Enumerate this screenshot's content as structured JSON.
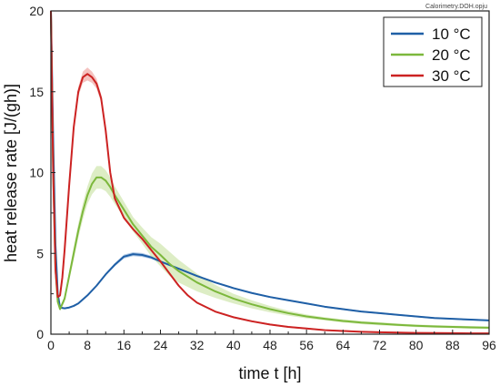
{
  "source_label": "Calorimetry.DOH.opju",
  "chart_data": {
    "type": "line",
    "xlabel": "time t [h]",
    "ylabel": "heat release rate [J/(gh)]",
    "xlim": [
      0,
      96
    ],
    "ylim": [
      0,
      20
    ],
    "x_ticks": [
      0,
      8,
      16,
      24,
      32,
      40,
      48,
      56,
      64,
      72,
      80,
      88,
      96
    ],
    "y_ticks": [
      0,
      5,
      10,
      15,
      20
    ],
    "grid": false,
    "legend_position": "top-right",
    "series": [
      {
        "name": "10 °C",
        "color": "#1f5fa6",
        "band_color": "#8fb3dc",
        "x": [
          0,
          0.5,
          1,
          1.5,
          2,
          3,
          4,
          5,
          6,
          8,
          10,
          12,
          14,
          16,
          18,
          20,
          22,
          24,
          28,
          32,
          36,
          40,
          44,
          48,
          52,
          56,
          60,
          64,
          68,
          72,
          76,
          80,
          84,
          88,
          92,
          96
        ],
        "y": [
          20,
          12,
          5.5,
          2.5,
          1.65,
          1.6,
          1.65,
          1.75,
          1.9,
          2.4,
          3.0,
          3.7,
          4.3,
          4.8,
          4.95,
          4.9,
          4.75,
          4.5,
          4.05,
          3.6,
          3.2,
          2.85,
          2.55,
          2.3,
          2.1,
          1.9,
          1.7,
          1.55,
          1.4,
          1.3,
          1.2,
          1.1,
          1.0,
          0.95,
          0.9,
          0.85
        ],
        "band": [
          0,
          0,
          0,
          0,
          0.05,
          0.05,
          0.05,
          0.05,
          0.05,
          0.05,
          0.05,
          0.07,
          0.1,
          0.12,
          0.12,
          0.12,
          0.1,
          0.08,
          0.05,
          0.05,
          0.05,
          0.05,
          0.05,
          0.05,
          0.05,
          0.05,
          0.05,
          0.05,
          0.05,
          0.05,
          0.05,
          0.05,
          0.05,
          0.05,
          0.05,
          0.05
        ]
      },
      {
        "name": "20 °C",
        "color": "#7cb83c",
        "band_color": "#cfe6ad",
        "x": [
          0,
          0.5,
          1,
          1.5,
          2,
          3,
          4,
          5,
          6,
          7,
          8,
          9,
          10,
          11,
          12,
          13,
          14,
          16,
          18,
          20,
          22,
          24,
          26,
          28,
          32,
          36,
          40,
          44,
          48,
          52,
          56,
          60,
          64,
          68,
          72,
          76,
          80,
          84,
          88,
          92,
          96
        ],
        "y": [
          20,
          10,
          4,
          2.0,
          1.55,
          2.2,
          3.6,
          5.0,
          6.4,
          7.6,
          8.6,
          9.3,
          9.7,
          9.7,
          9.5,
          9.1,
          8.6,
          7.7,
          6.8,
          6.1,
          5.4,
          4.9,
          4.35,
          3.9,
          3.2,
          2.65,
          2.2,
          1.85,
          1.55,
          1.3,
          1.1,
          0.95,
          0.82,
          0.72,
          0.65,
          0.58,
          0.52,
          0.48,
          0.45,
          0.42,
          0.4
        ],
        "band": [
          0,
          0,
          0,
          0,
          0.1,
          0.2,
          0.3,
          0.4,
          0.45,
          0.5,
          0.55,
          0.65,
          0.7,
          0.7,
          0.65,
          0.6,
          0.55,
          0.5,
          0.45,
          0.5,
          0.6,
          0.7,
          0.75,
          0.7,
          0.55,
          0.4,
          0.3,
          0.25,
          0.2,
          0.15,
          0.12,
          0.1,
          0.1,
          0.1,
          0.1,
          0.08,
          0.08,
          0.08,
          0.08,
          0.08,
          0.08
        ]
      },
      {
        "name": "30 °C",
        "color": "#cc2222",
        "band_color": "#f0a8a4",
        "x": [
          0,
          0.5,
          1,
          1.5,
          2,
          2.5,
          3,
          4,
          5,
          6,
          7,
          8,
          9,
          10,
          11,
          12,
          13,
          14,
          16,
          18,
          20,
          22,
          24,
          26,
          28,
          30,
          32,
          36,
          40,
          44,
          48,
          52,
          56,
          60,
          64,
          68,
          72,
          76,
          80,
          84,
          88,
          92,
          96
        ],
        "y": [
          20,
          10,
          4,
          2.3,
          2.4,
          3.5,
          5.2,
          9.2,
          12.8,
          15.0,
          15.9,
          16.1,
          15.9,
          15.5,
          14.6,
          12.6,
          10.0,
          8.4,
          7.2,
          6.5,
          5.9,
          5.2,
          4.5,
          3.75,
          3.0,
          2.4,
          1.95,
          1.4,
          1.05,
          0.8,
          0.6,
          0.45,
          0.35,
          0.25,
          0.2,
          0.15,
          0.12,
          0.1,
          0.08,
          0.07,
          0.06,
          0.05,
          0.05
        ],
        "band": [
          0,
          0,
          0,
          0,
          0.05,
          0.1,
          0.15,
          0.2,
          0.25,
          0.3,
          0.35,
          0.4,
          0.35,
          0.3,
          0.25,
          0.2,
          0.15,
          0.12,
          0.1,
          0.08,
          0.08,
          0.08,
          0.08,
          0.08,
          0.08,
          0.06,
          0.05,
          0.05,
          0.05,
          0.05,
          0.05,
          0.05,
          0.05,
          0.05,
          0.05,
          0.05,
          0.05,
          0.05,
          0.05,
          0.05,
          0.05,
          0.05,
          0.05
        ]
      }
    ]
  }
}
